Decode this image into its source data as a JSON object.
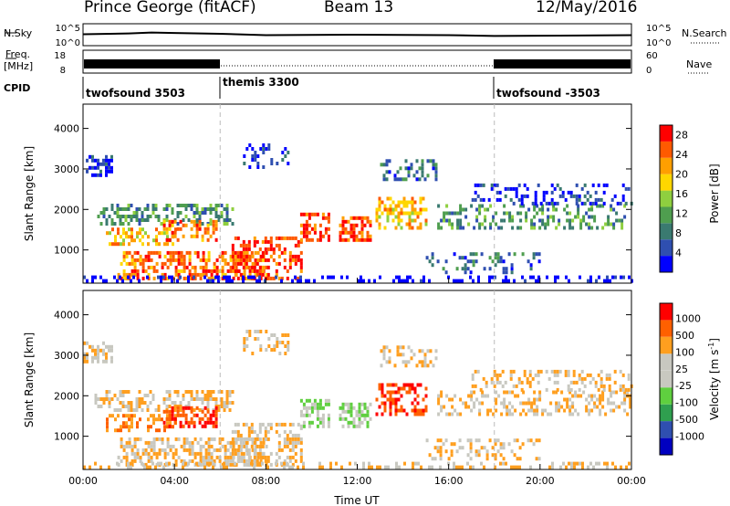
{
  "header": {
    "station": "Prince George (fitACF)",
    "beam": "Beam 13",
    "date": "12/May/2016"
  },
  "side_labels": {
    "nsky": "N.Sky",
    "nsearch": "N.Search",
    "freq_line1": "Freq.",
    "freq_line2": "[MHz]",
    "nave": "Nave",
    "cpid": "CPID"
  },
  "cpid_segments": [
    {
      "label": "twofsound 3503",
      "start_hour": 0
    },
    {
      "label": "themis 3300",
      "start_hour": 6
    },
    {
      "label": "twofsound -3503",
      "start_hour": 18
    }
  ],
  "colors": {
    "power": [
      "#0000ff",
      "#2f4fb0",
      "#3a7a70",
      "#4f9e4f",
      "#8fcf3f",
      "#ffd700",
      "#ff9f00",
      "#ff5a00",
      "#ff0000"
    ],
    "velocity": [
      "#ff0000",
      "#ff6000",
      "#ff9f1f",
      "#c8c8c0",
      "#c8c8c0",
      "#5fcf3f",
      "#2f9f4f",
      "#2f4fb0",
      "#0000c0"
    ]
  },
  "chart_data": [
    {
      "type": "line",
      "name": "noise",
      "x_ticks": [
        "00:00",
        "04:00",
        "08:00",
        "12:00",
        "16:00",
        "20:00",
        "00:00"
      ],
      "left_axis": {
        "label": "N.Sky",
        "ticks": [
          "10^5",
          "10^0"
        ],
        "range": [
          0,
          5
        ],
        "scale": "log"
      },
      "right_axis": {
        "label": "N.Search",
        "ticks": [
          "10^5",
          "10^0"
        ],
        "range": [
          0,
          5
        ],
        "scale": "log"
      },
      "series": [
        {
          "name": "N.Sky",
          "x_hours": [
            0,
            2,
            3,
            4,
            6,
            8,
            12,
            16,
            18,
            24
          ],
          "y": [
            2.6,
            2.8,
            3.0,
            2.9,
            2.7,
            2.4,
            2.5,
            2.4,
            2.2,
            2.4
          ]
        }
      ]
    },
    {
      "type": "line",
      "name": "frequency",
      "left_axis": {
        "label": "Freq. [MHz]",
        "ticks": [
          "18",
          "8"
        ],
        "range": [
          8,
          18
        ]
      },
      "right_axis": {
        "label": "Nave",
        "ticks": [
          "60",
          "0"
        ],
        "range": [
          0,
          60
        ]
      },
      "series": [
        {
          "name": "Freq.",
          "x_hours": [
            0,
            6,
            6,
            18,
            18,
            24
          ],
          "y": [
            11,
            11,
            10.5,
            10.5,
            11,
            11
          ]
        },
        {
          "name": "Nave",
          "x_hours": [
            0,
            6,
            18,
            24
          ],
          "y": [
            35,
            12,
            12,
            35
          ]
        }
      ]
    },
    {
      "type": "heatmap",
      "name": "power",
      "ylabel": "Slant Range [km]",
      "yticks": [
        1000,
        2000,
        3000,
        4000
      ],
      "ylim": [
        180,
        4600
      ],
      "xlabel": "Time UT",
      "xlim_hours": [
        0,
        24
      ],
      "colorbar": {
        "label": "Power [dB]",
        "ticks": [
          4,
          8,
          12,
          16,
          20,
          24,
          28
        ],
        "range": [
          0,
          30
        ]
      }
    },
    {
      "type": "heatmap",
      "name": "velocity",
      "ylabel": "Slant Range [km]",
      "yticks": [
        1000,
        2000,
        3000,
        4000
      ],
      "ylim": [
        180,
        4600
      ],
      "xlabel": "Time UT",
      "xticks": [
        "00:00",
        "04:00",
        "08:00",
        "12:00",
        "16:00",
        "20:00",
        "00:00"
      ],
      "xlim_hours": [
        0,
        24
      ],
      "colorbar": {
        "label": "Velocity [m s^-1]",
        "ticks": [
          1000,
          500,
          100,
          25,
          -25,
          -100,
          -500,
          -1000
        ]
      }
    }
  ]
}
